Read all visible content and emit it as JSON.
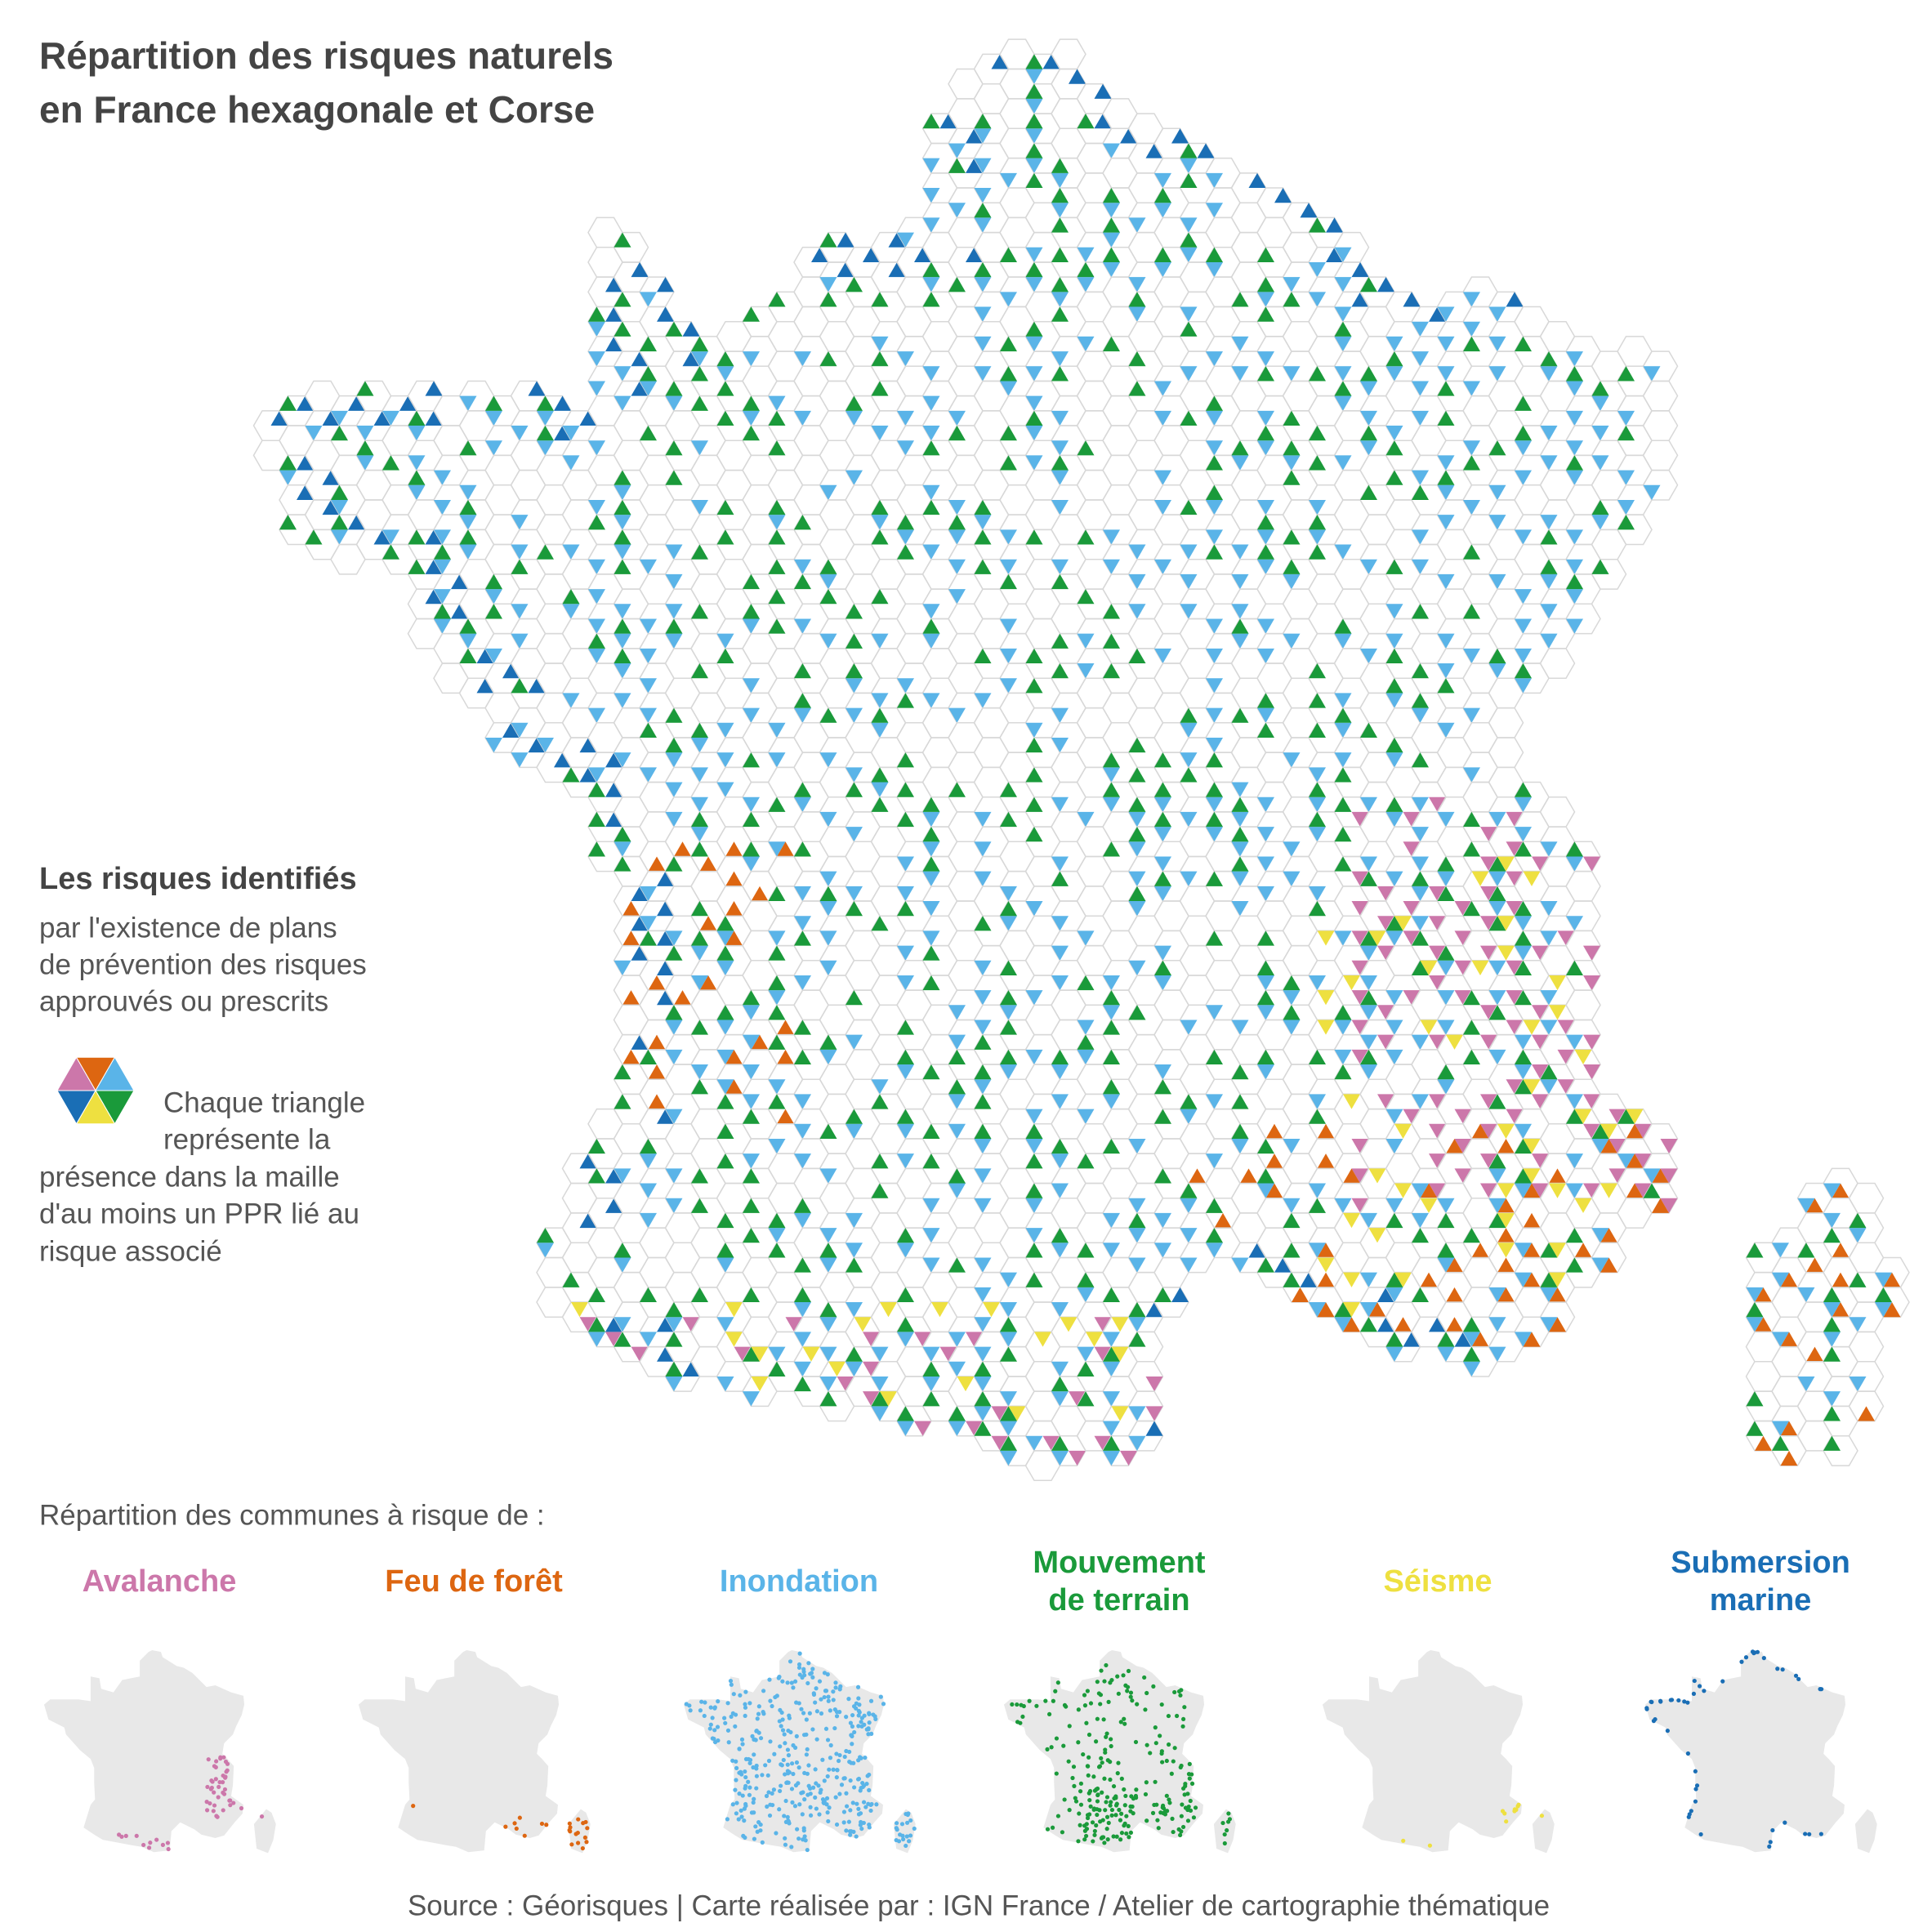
{
  "title_lines": [
    "Répartition des risques naturels",
    "en France hexagonale et Corse"
  ],
  "legend": {
    "heading": "Les risques identifiés",
    "lines": [
      "par l'existence de plans",
      "de prévention des risques",
      "approuvés ou prescrits"
    ],
    "note_lines": [
      "Chaque triangle",
      "représente la",
      "présence dans la maille",
      "d'au moins un PPR lié au",
      "risque associé"
    ]
  },
  "distribution_heading": "Répartition des communes à risque de :",
  "risks": [
    {
      "name_lines": [
        "Avalanche"
      ],
      "color": "#cc77aa"
    },
    {
      "name_lines": [
        "Feu de forêt"
      ],
      "color": "#dd6611"
    },
    {
      "name_lines": [
        "Inondation"
      ],
      "color": "#5ab4e8"
    },
    {
      "name_lines": [
        "Mouvement",
        "de terrain"
      ],
      "color": "#1a9a3a"
    },
    {
      "name_lines": [
        "Séisme"
      ],
      "color": "#eee040"
    },
    {
      "name_lines": [
        "Submersion",
        "marine"
      ],
      "color": "#1a6eb5"
    }
  ],
  "source": "Source : Géorisques | Carte réalisée par : IGN France / Atelier de cartographie thématique"
}
